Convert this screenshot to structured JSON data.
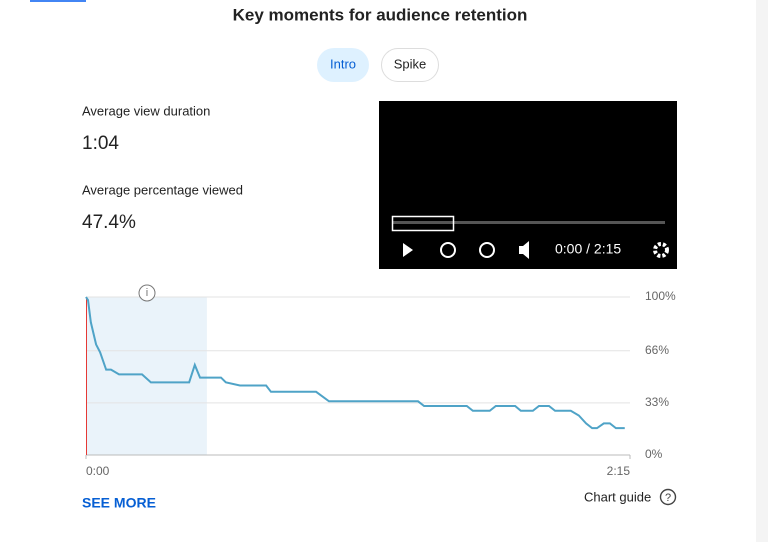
{
  "header": {
    "title": "Key moments for audience retention"
  },
  "tabs": [
    "Intro",
    "Spike"
  ],
  "stats": [
    {
      "label": "Average view duration",
      "value": "1:04"
    },
    {
      "label": "Average percentage viewed",
      "value": "47.4%"
    }
  ],
  "player": {
    "time": "0:00 / 2:15"
  },
  "chart_data": {
    "type": "line",
    "x": [
      0,
      0.5,
      1.2,
      2.5,
      3.5,
      5,
      6.2,
      8.2,
      13.9,
      16.1,
      25.6,
      27,
      28.3,
      33.5,
      34.7,
      38.2,
      44.7,
      45.9,
      57.1,
      60.3,
      82.4,
      83.9,
      94.5,
      96,
      100.2,
      101.7,
      106.5,
      107.9,
      110.9,
      112.4,
      114.9,
      116.4,
      120.3,
      122.3,
      124.1,
      125.6,
      126.8,
      128.5,
      130,
      131.5,
      133.7
    ],
    "series": [
      {
        "color": "#4fa3c7",
        "values": [
          100,
          98,
          84,
          70,
          65,
          54,
          54,
          51,
          51,
          46,
          46,
          57,
          49,
          49,
          46,
          44,
          44,
          40,
          40,
          34,
          34,
          31,
          31,
          28,
          28,
          31,
          31,
          28,
          28,
          31,
          31,
          28,
          28,
          25,
          20,
          17,
          17,
          20,
          20,
          17,
          17
        ]
      }
    ],
    "xlim": [
      0,
      135
    ],
    "xticks": [
      {
        "value": 0,
        "label": "0:00"
      },
      {
        "value": 135,
        "label": "2:15"
      }
    ],
    "ylim": [
      0,
      100
    ],
    "yticks": [
      {
        "value": 0,
        "label": "0%"
      },
      {
        "value": 33,
        "label": "33%"
      },
      {
        "value": 66,
        "label": "66%"
      },
      {
        "value": 100,
        "label": "100%"
      }
    ],
    "grid": true,
    "highlight": [
      0,
      30
    ]
  },
  "links": {
    "see_more": "SEE MORE",
    "chart_guide": "Chart guide"
  }
}
